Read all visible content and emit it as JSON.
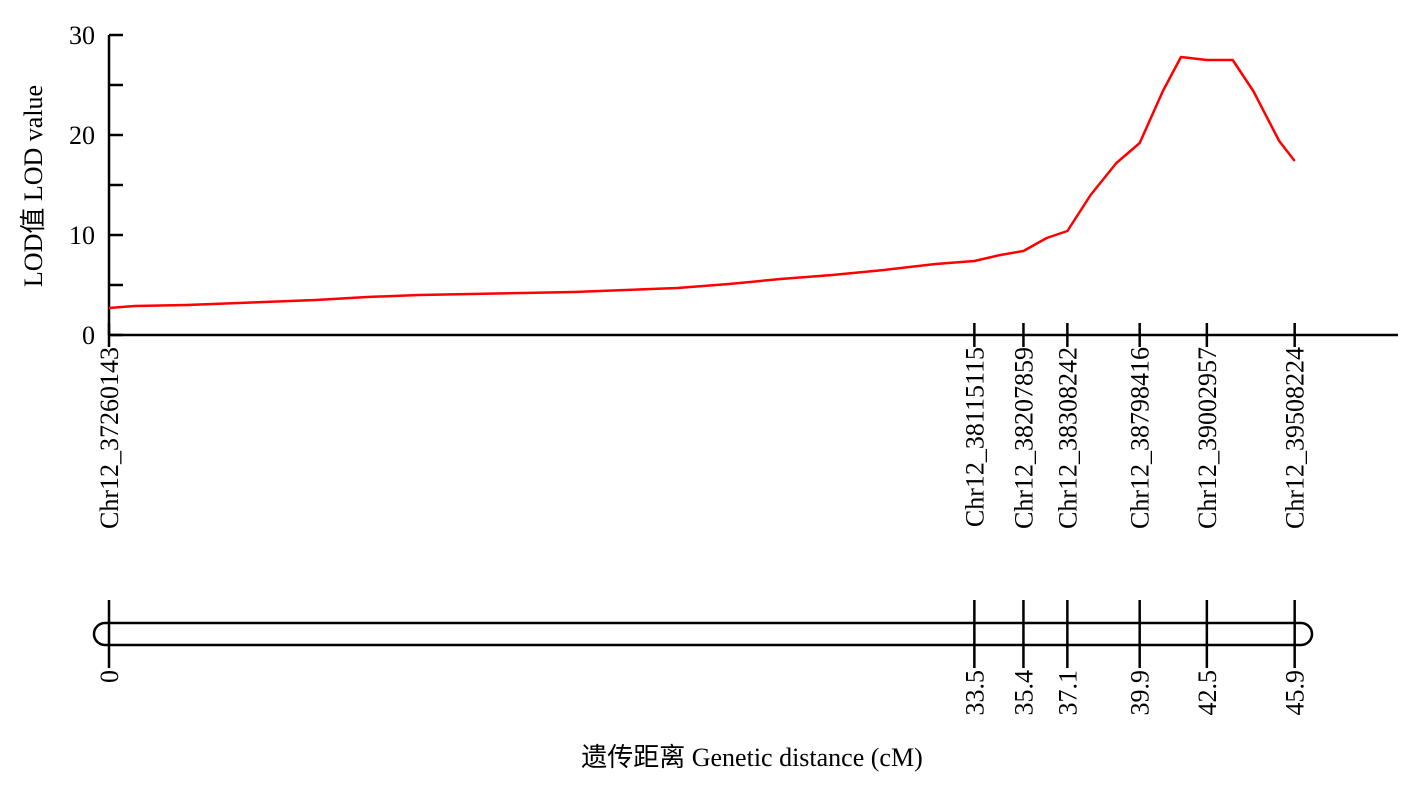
{
  "chart_data": {
    "type": "line",
    "ylabel": "LOD值 LOD value",
    "xlabel": "遗传距离 Genetic distance (cM)",
    "ylim": [
      0,
      30
    ],
    "yticks": [
      "0",
      "10",
      "20",
      "30"
    ],
    "xlim": [
      0,
      49.9
    ],
    "line_color": "#ff0000",
    "series": [
      {
        "x": [
          0,
          1,
          3,
          6,
          8,
          10,
          12,
          14,
          16,
          18,
          20,
          22,
          24,
          26,
          28,
          30,
          32,
          33.5,
          34.5,
          35.4,
          36.3,
          37.1,
          38.0,
          39.0,
          39.9,
          40.8,
          41.5,
          42.5,
          43.5,
          44.3,
          45.3,
          45.9
        ],
        "y": [
          2.7,
          2.9,
          3.0,
          3.3,
          3.5,
          3.8,
          4.0,
          4.1,
          4.2,
          4.3,
          4.5,
          4.7,
          5.1,
          5.6,
          6.0,
          6.5,
          7.1,
          7.4,
          8.0,
          8.4,
          9.7,
          10.4,
          14.0,
          17.2,
          19.2,
          24.4,
          27.8,
          27.5,
          27.5,
          24.4,
          19.4,
          17.4
        ]
      }
    ],
    "markers": [
      {
        "position": 0,
        "label": "0",
        "name": "Chr12_37260143"
      },
      {
        "position": 33.5,
        "label": "33.5",
        "name": "Chr12_38115115"
      },
      {
        "position": 35.4,
        "label": "35.4",
        "name": "Chr12_38207859"
      },
      {
        "position": 37.1,
        "label": "37.1",
        "name": "Chr12_38308242"
      },
      {
        "position": 39.9,
        "label": "39.9",
        "name": "Chr12_38798416"
      },
      {
        "position": 42.5,
        "label": "42.5",
        "name": "Chr12_39002957"
      },
      {
        "position": 45.9,
        "label": "45.9",
        "name": "Chr12_39508224"
      }
    ]
  }
}
